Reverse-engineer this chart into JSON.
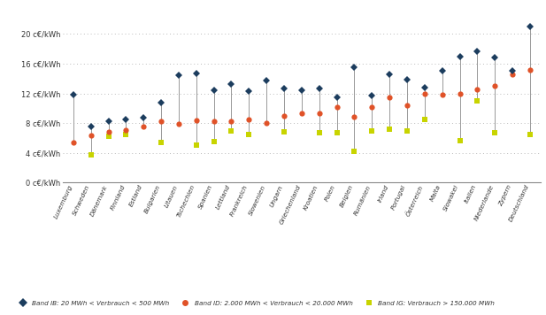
{
  "countries": [
    "Luxemburg",
    "Schweden",
    "Dänemark",
    "Finnland",
    "Estland",
    "Bulgarien",
    "Litauen",
    "Tschechien",
    "Spanien",
    "Lettland",
    "Frankreich",
    "Slowenien",
    "Ungarn",
    "Griechenland",
    "Kroatien",
    "Polen",
    "Belgien",
    "Rumänien",
    "Irland",
    "Portugal",
    "Österreich",
    "Malta",
    "Slowakei",
    "Italien",
    "Niederlande",
    "Zypern",
    "Deutschland"
  ],
  "band_IB": [
    11.8,
    7.5,
    8.3,
    8.5,
    8.7,
    10.8,
    14.4,
    14.7,
    12.4,
    13.3,
    12.3,
    13.7,
    12.6,
    12.4,
    12.6,
    11.5,
    15.5,
    11.7,
    14.5,
    13.9,
    12.8,
    15.0,
    16.9,
    17.6,
    16.8,
    15.0,
    21.0
  ],
  "band_ID": [
    5.4,
    6.4,
    6.8,
    7.1,
    7.5,
    8.2,
    7.9,
    8.4,
    8.2,
    8.3,
    8.5,
    8.0,
    9.0,
    9.3,
    9.3,
    10.1,
    8.8,
    10.2,
    11.5,
    10.4,
    12.0,
    11.8,
    12.0,
    12.5,
    13.0,
    14.5,
    15.2
  ],
  "band_IG": [
    null,
    3.7,
    6.2,
    6.5,
    null,
    5.4,
    null,
    5.0,
    5.5,
    7.0,
    6.5,
    null,
    6.8,
    null,
    6.7,
    6.7,
    4.2,
    7.0,
    7.2,
    7.0,
    8.5,
    null,
    5.6,
    11.0,
    6.7,
    null,
    6.5
  ],
  "color_IB": "#1c3d5e",
  "color_ID": "#e05228",
  "color_IG": "#c8d400",
  "line_color": "#999999",
  "ylim": [
    0,
    22
  ],
  "yticks": [
    0,
    4,
    8,
    12,
    16,
    20
  ],
  "ytick_labels": [
    "0 c€/kWh",
    "4 c€/kWh",
    "8 c€/kWh",
    "12 c€/kWh",
    "16 c€/kWh",
    "20 c€/kWh"
  ],
  "legend_IB": "Band IB: 20 MWh < Verbrauch < 500 MWh",
  "legend_ID": "Band ID: 2.000 MWh < Verbrauch < 20.000 MWh",
  "legend_IG": "Band IG: Verbrauch > 150.000 MWh"
}
